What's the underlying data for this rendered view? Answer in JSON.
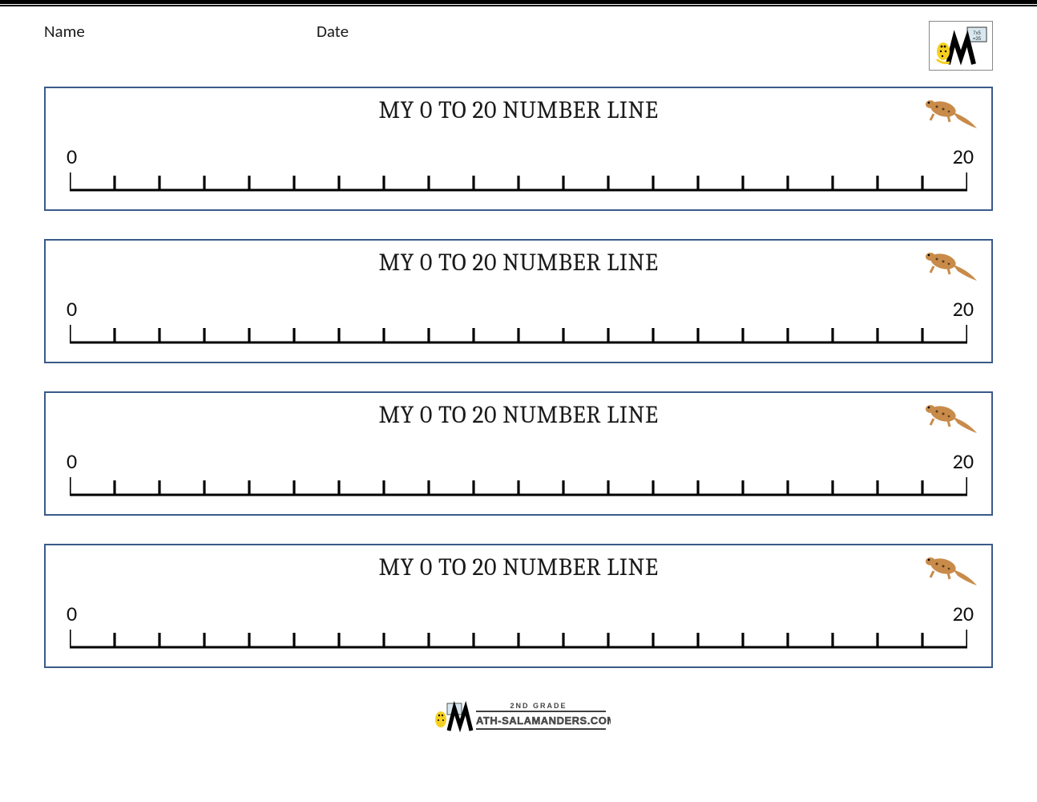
{
  "header": {
    "name_label": "Name",
    "date_label": "Date"
  },
  "panel": {
    "title": "MY 0 TO 20 NUMBER LINE",
    "count": 4,
    "border_color": "#3a5a8a"
  },
  "numberline": {
    "min": 0,
    "max": 20,
    "tick_count": 21,
    "start_label": "0",
    "end_label": "20",
    "line_color": "#000000",
    "line_width": 3,
    "tick_height_end": 22,
    "tick_height_mid": 18,
    "label_fontsize": 26
  },
  "footer": {
    "grade_text": "2ND GRADE",
    "site_text": "ATH-SALAMANDERS.COM"
  },
  "colors": {
    "salamander_body": "#c98b4a",
    "salamander_spots": "#5a3a1a",
    "logo_yellow": "#f5d020",
    "logo_black": "#000000",
    "board_bg": "#d8e8f0"
  }
}
